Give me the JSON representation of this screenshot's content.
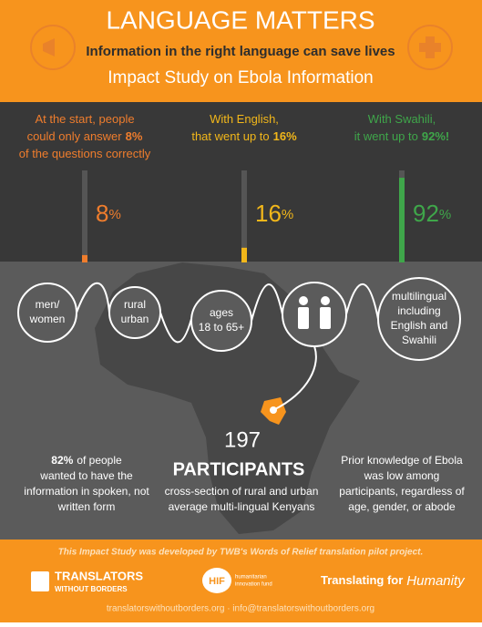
{
  "header": {
    "title": "LANGUAGE MATTERS",
    "subtitle": "Information in the right language can save lives",
    "study": "Impact Study on Ebola Information"
  },
  "stats": {
    "ylim": [
      0,
      100
    ],
    "items": [
      {
        "lines": [
          [
            {
              "t": "At the start, people"
            }
          ],
          [
            {
              "t": "could only answer"
            },
            {
              "t": "8%",
              "b": true
            }
          ],
          [
            {
              "t": "of the questions correctly"
            }
          ]
        ],
        "value": 8,
        "unit": "%",
        "color": "#ef7d2d"
      },
      {
        "lines": [
          [
            {
              "t": "With English,"
            }
          ],
          [
            {
              "t": "that went up to"
            },
            {
              "t": "16%",
              "b": true
            }
          ]
        ],
        "value": 16,
        "unit": "%",
        "color": "#f2b71a"
      },
      {
        "lines": [
          [
            {
              "t": "With Swahili,"
            }
          ],
          [
            {
              "t": "it went up to"
            },
            {
              "t": "92%!",
              "b": true
            }
          ]
        ],
        "value": 92,
        "unit": "%",
        "color": "#3fa64a"
      }
    ]
  },
  "circles": [
    [
      "men/",
      "women"
    ],
    [
      "rural",
      "urban"
    ],
    [
      "ages",
      "18 to 65+"
    ],
    [
      "multilingual",
      "including",
      "English and",
      "Swahili"
    ]
  ],
  "participants": {
    "count": "197",
    "label": "PARTICIPANTS",
    "desc": [
      "cross-section of rural and urban",
      "average multi-lingual Kenyans"
    ]
  },
  "left_note": [
    [
      {
        "t": "82%",
        "b": true
      },
      {
        "t": "of people"
      }
    ],
    [
      {
        "t": "wanted to have the"
      }
    ],
    [
      {
        "t": "information in spoken, not"
      }
    ],
    [
      {
        "t": "written form"
      }
    ]
  ],
  "right_note": [
    [
      {
        "t": "Prior knowledge of Ebola"
      }
    ],
    [
      {
        "t": "was low among"
      }
    ],
    [
      {
        "t": "participants, regardless of"
      }
    ],
    [
      {
        "t": "age, gender, or abode"
      }
    ]
  ],
  "footer": {
    "credit": "This Impact Study was developed by TWB's Words of Relief translation pilot project.",
    "twb": [
      "TRANSLATORS",
      "WITHOUT BORDERS"
    ],
    "hif": [
      "HIF",
      "humanitarian",
      "innovation fund"
    ],
    "slogan": [
      "Translating for",
      "Humanity"
    ],
    "contact": "translatorswithoutborders.org  ·  info@translatorswithoutborders.org"
  }
}
